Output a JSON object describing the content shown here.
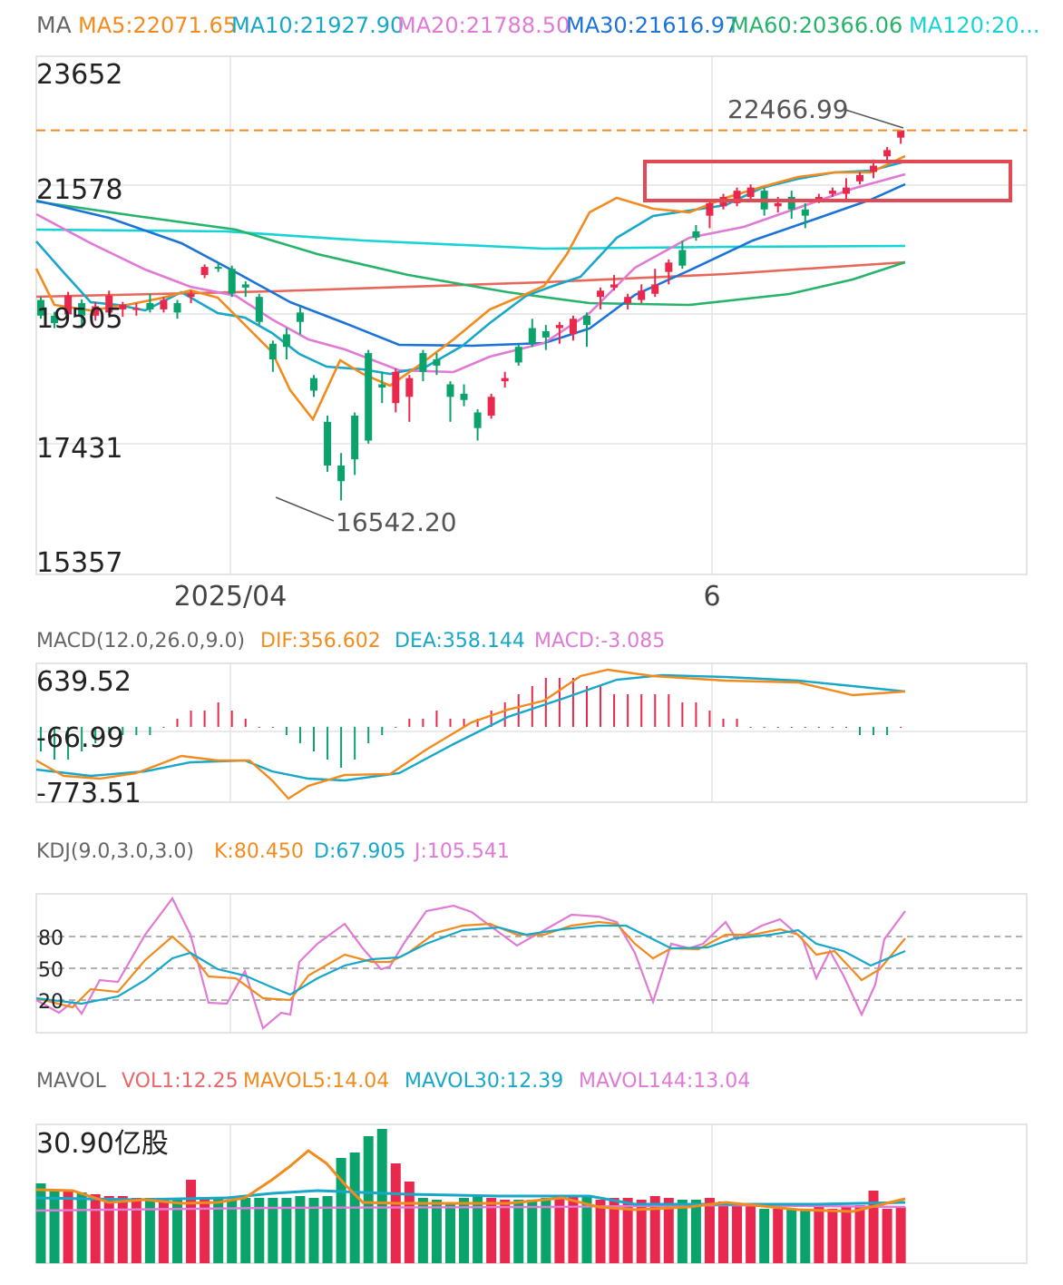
{
  "ma_legend": {
    "title": "MA",
    "items": [
      {
        "text": "MA5:22071.65",
        "color": "#f28b1e"
      },
      {
        "text": "MA10:21927.90",
        "color": "#17a8c9"
      },
      {
        "text": "MA20:21788.50",
        "color": "#e07ad6"
      },
      {
        "text": "MA30:21616.97",
        "color": "#1a73d9"
      },
      {
        "text": "MA60:20366.06",
        "color": "#27b36b"
      },
      {
        "text": "MA120:20...",
        "color": "#17d3d6"
      }
    ]
  },
  "colors": {
    "up": "#e8294d",
    "down": "#0aa36b",
    "grid": "#e3e3e3",
    "frame": "#dcdcdc",
    "highlight_box": "#e14a55",
    "ref_line": "#f28b1e",
    "ma250": "#e8675b"
  },
  "price_axis": {
    "ticks": [
      "23652",
      "21578",
      "19505",
      "17431",
      "15357"
    ],
    "min": 15357,
    "max": 23652
  },
  "x_axis": {
    "labels": [
      "2025/04",
      "6"
    ]
  },
  "annotations": {
    "high_label": "22466.99",
    "low_label": "16542.20",
    "ref_price": 22466.99
  },
  "chart_data": {
    "type": "candlestick",
    "n": 64,
    "candles": [
      {
        "o": 19750,
        "c": 19500,
        "h": 19800,
        "l": 19450
      },
      {
        "o": 19500,
        "c": 19380,
        "h": 19560,
        "l": 19300
      },
      {
        "o": 19520,
        "c": 19820,
        "h": 19880,
        "l": 19460
      },
      {
        "o": 19700,
        "c": 19500,
        "h": 19760,
        "l": 19300
      },
      {
        "o": 19500,
        "c": 19650,
        "h": 19720,
        "l": 19420
      },
      {
        "o": 19550,
        "c": 19820,
        "h": 19900,
        "l": 19500
      },
      {
        "o": 19600,
        "c": 19680,
        "h": 19720,
        "l": 19480
      },
      {
        "o": 19600,
        "c": 19620,
        "h": 19700,
        "l": 19500
      },
      {
        "o": 19700,
        "c": 19600,
        "h": 19850,
        "l": 19550
      },
      {
        "o": 19600,
        "c": 19750,
        "h": 19800,
        "l": 19550
      },
      {
        "o": 19700,
        "c": 19550,
        "h": 19750,
        "l": 19450
      },
      {
        "o": 19800,
        "c": 19850,
        "h": 19900,
        "l": 19700
      },
      {
        "o": 20150,
        "c": 20280,
        "h": 20320,
        "l": 20100
      },
      {
        "o": 20280,
        "c": 20250,
        "h": 20350,
        "l": 20200
      },
      {
        "o": 20250,
        "c": 19850,
        "h": 20300,
        "l": 19800
      },
      {
        "o": 20000,
        "c": 19950,
        "h": 20050,
        "l": 19800
      },
      {
        "o": 19800,
        "c": 19400,
        "h": 19850,
        "l": 19350
      },
      {
        "o": 19050,
        "c": 18800,
        "h": 19100,
        "l": 18600
      },
      {
        "o": 19200,
        "c": 19000,
        "h": 19300,
        "l": 18800
      },
      {
        "o": 19550,
        "c": 19400,
        "h": 19650,
        "l": 19200
      },
      {
        "o": 18500,
        "c": 18300,
        "h": 18550,
        "l": 18200
      },
      {
        "o": 17800,
        "c": 17100,
        "h": 17900,
        "l": 17000
      },
      {
        "o": 17100,
        "c": 16850,
        "h": 17300,
        "l": 16542
      },
      {
        "o": 17900,
        "c": 17200,
        "h": 17950,
        "l": 16950
      },
      {
        "o": 18900,
        "c": 17500,
        "h": 18950,
        "l": 17450
      },
      {
        "o": 18400,
        "c": 18350,
        "h": 18600,
        "l": 18100
      },
      {
        "o": 18100,
        "c": 18600,
        "h": 18650,
        "l": 17950
      },
      {
        "o": 18200,
        "c": 18500,
        "h": 18550,
        "l": 17800
      },
      {
        "o": 18900,
        "c": 18600,
        "h": 18950,
        "l": 18450
      },
      {
        "o": 18800,
        "c": 18700,
        "h": 18900,
        "l": 18550
      },
      {
        "o": 18400,
        "c": 18200,
        "h": 18450,
        "l": 17800
      },
      {
        "o": 18250,
        "c": 18150,
        "h": 18400,
        "l": 18050
      },
      {
        "o": 17950,
        "c": 17700,
        "h": 18000,
        "l": 17500
      },
      {
        "o": 17900,
        "c": 18200,
        "h": 18250,
        "l": 17850
      },
      {
        "o": 18450,
        "c": 18500,
        "h": 18600,
        "l": 18350
      },
      {
        "o": 19000,
        "c": 18750,
        "h": 19050,
        "l": 18700
      },
      {
        "o": 19300,
        "c": 19050,
        "h": 19450,
        "l": 19000
      },
      {
        "o": 19250,
        "c": 19150,
        "h": 19350,
        "l": 18950
      },
      {
        "o": 19300,
        "c": 19350,
        "h": 19400,
        "l": 19050
      },
      {
        "o": 19200,
        "c": 19450,
        "h": 19500,
        "l": 19100
      },
      {
        "o": 19500,
        "c": 19350,
        "h": 19550,
        "l": 19000
      },
      {
        "o": 19800,
        "c": 19900,
        "h": 19950,
        "l": 19600
      },
      {
        "o": 19950,
        "c": 20000,
        "h": 20150,
        "l": 19900
      },
      {
        "o": 19700,
        "c": 19800,
        "h": 19850,
        "l": 19600
      },
      {
        "o": 19750,
        "c": 19900,
        "h": 20000,
        "l": 19700
      },
      {
        "o": 19850,
        "c": 20000,
        "h": 20250,
        "l": 19800
      },
      {
        "o": 20200,
        "c": 20350,
        "h": 20400,
        "l": 20000
      },
      {
        "o": 20550,
        "c": 20300,
        "h": 20700,
        "l": 20250
      },
      {
        "o": 20850,
        "c": 20750,
        "h": 20950,
        "l": 20700
      },
      {
        "o": 21100,
        "c": 21300,
        "h": 21350,
        "l": 20900
      },
      {
        "o": 21250,
        "c": 21400,
        "h": 21450,
        "l": 21200
      },
      {
        "o": 21300,
        "c": 21500,
        "h": 21550,
        "l": 21250
      },
      {
        "o": 21400,
        "c": 21550,
        "h": 21600,
        "l": 21350
      },
      {
        "o": 21500,
        "c": 21200,
        "h": 21550,
        "l": 21100
      },
      {
        "o": 21250,
        "c": 21300,
        "h": 21400,
        "l": 21150
      },
      {
        "o": 21400,
        "c": 21200,
        "h": 21500,
        "l": 21050
      },
      {
        "o": 21200,
        "c": 21100,
        "h": 21300,
        "l": 20900
      },
      {
        "o": 21350,
        "c": 21400,
        "h": 21450,
        "l": 21300
      },
      {
        "o": 21450,
        "c": 21500,
        "h": 21550,
        "l": 21400
      },
      {
        "o": 21450,
        "c": 21550,
        "h": 21700,
        "l": 21350
      },
      {
        "o": 21650,
        "c": 21750,
        "h": 21800,
        "l": 21600
      },
      {
        "o": 21800,
        "c": 21900,
        "h": 22000,
        "l": 21700
      },
      {
        "o": 22050,
        "c": 22150,
        "h": 22200,
        "l": 21950
      },
      {
        "o": 22350,
        "c": 22467,
        "h": 22467,
        "l": 22250
      }
    ]
  },
  "macd_legend": {
    "title": "MACD(12.0,26.0,9.0)",
    "items": [
      {
        "text": "DIF:356.602",
        "color": "#f28b1e"
      },
      {
        "text": "DEA:358.144",
        "color": "#17a8c9"
      },
      {
        "text": "MACD:-3.085",
        "color": "#e07ad6"
      }
    ]
  },
  "macd_axis": {
    "ticks": [
      "639.52",
      "-66.99",
      "-773.51"
    ]
  },
  "kdj_legend": {
    "title": "KDJ(9.0,3.0,3.0)",
    "items": [
      {
        "text": "K:80.450",
        "color": "#f28b1e"
      },
      {
        "text": "D:67.905",
        "color": "#17a8c9"
      },
      {
        "text": "J:105.541",
        "color": "#e07ad6"
      }
    ]
  },
  "kdj_axis": {
    "ticks": [
      "80",
      "50",
      "20"
    ]
  },
  "vol_legend": {
    "title": "MAVOL",
    "items": [
      {
        "text": "VOL1:12.25",
        "color": "#e8676b"
      },
      {
        "text": "MAVOL5:14.04",
        "color": "#f28b1e"
      },
      {
        "text": "MAVOL30:12.39",
        "color": "#17a8c9"
      },
      {
        "text": "MAVOL144:13.04",
        "color": "#e07ad6"
      }
    ]
  },
  "vol_axis": {
    "top_label": "30.90亿股"
  }
}
